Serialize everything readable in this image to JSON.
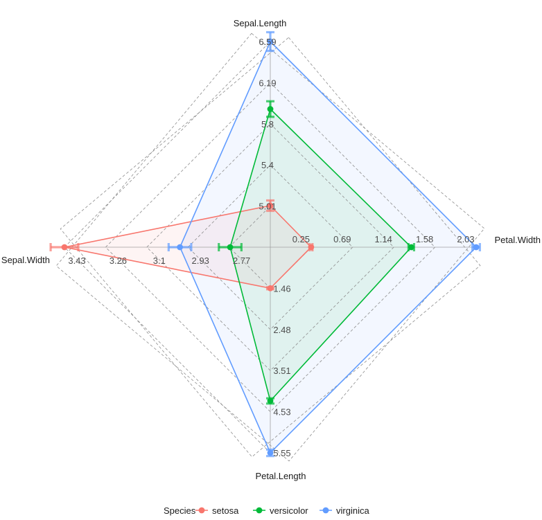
{
  "chart_data": {
    "type": "radar",
    "axes": [
      {
        "name": "Sepal.Length",
        "ticks": [
          "5.01",
          "5.4",
          "5.8",
          "6.19",
          "6.59"
        ],
        "tick_values": [
          5.01,
          5.4,
          5.8,
          6.19,
          6.59
        ],
        "range": [
          4.61,
          6.59
        ]
      },
      {
        "name": "Petal.Width",
        "ticks": [
          "0.25",
          "0.69",
          "1.14",
          "1.58",
          "2.03"
        ],
        "tick_values": [
          0.25,
          0.69,
          1.14,
          1.58,
          2.03
        ],
        "range": [
          -0.19,
          2.03
        ]
      },
      {
        "name": "Petal.Length",
        "ticks": [
          "1.46",
          "2.48",
          "3.51",
          "4.53",
          "5.55"
        ],
        "tick_values": [
          1.46,
          2.48,
          3.51,
          4.53,
          5.55
        ],
        "range": [
          0.44,
          5.55
        ]
      },
      {
        "name": "Sepal.Width",
        "ticks": [
          "2.77",
          "2.93",
          "3.1",
          "3.26",
          "3.43"
        ],
        "tick_values": [
          2.77,
          2.93,
          3.1,
          3.26,
          3.43
        ],
        "range": [
          2.61,
          3.43
        ]
      }
    ],
    "series": [
      {
        "name": "setosa",
        "color": "#F8766D",
        "values": [
          5.01,
          0.25,
          1.46,
          3.43
        ],
        "errors": [
          0.05,
          0.015,
          0.025,
          0.055
        ]
      },
      {
        "name": "versicolor",
        "color": "#00BA38",
        "values": [
          5.94,
          1.33,
          4.26,
          2.77
        ],
        "errors": [
          0.075,
          0.03,
          0.065,
          0.045
        ]
      },
      {
        "name": "virginica",
        "color": "#619CFF",
        "values": [
          6.59,
          2.03,
          5.55,
          2.97
        ],
        "errors": [
          0.09,
          0.04,
          0.08,
          0.045
        ]
      }
    ],
    "legend": {
      "title": "Species",
      "position": "bottom"
    },
    "grid": true
  }
}
